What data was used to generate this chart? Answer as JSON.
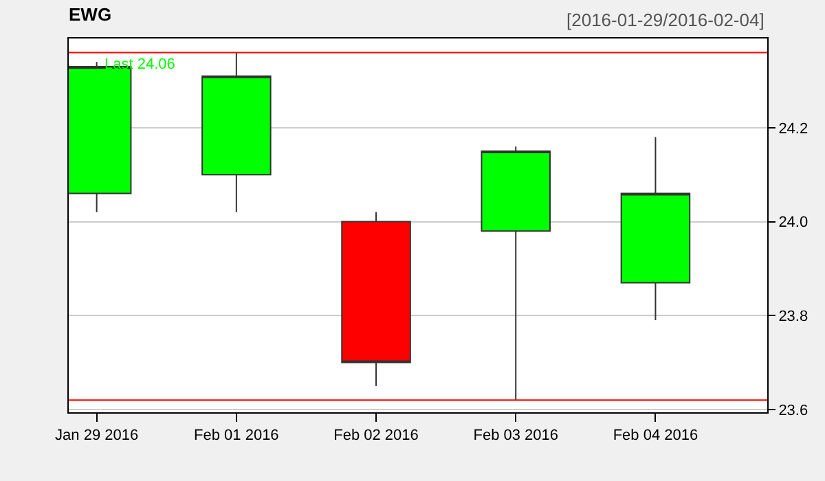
{
  "chart_data": {
    "type": "candlestick",
    "title": "EWG",
    "subtitle": "[2016-01-29/2016-02-04]",
    "categories": [
      "Jan 29 2016",
      "Feb 01 2016",
      "Feb 02 2016",
      "Feb 03 2016",
      "Feb 04 2016"
    ],
    "ohlc": [
      [
        24.06,
        24.34,
        24.02,
        24.33
      ],
      [
        24.1,
        24.36,
        24.02,
        24.31
      ],
      [
        24.0,
        24.02,
        23.65,
        23.7
      ],
      [
        23.98,
        24.16,
        23.62,
        24.15
      ],
      [
        23.87,
        24.18,
        23.79,
        24.06
      ]
    ],
    "colors": [
      "#00ff00",
      "#00ff00",
      "#ff0000",
      "#00ff00",
      "#00ff00"
    ],
    "ylim": [
      23.594,
      24.39
    ],
    "yticks": [
      23.6,
      23.8,
      {
        "value": 24.0,
        "label": "24.0"
      },
      24.2
    ],
    "grid": "y",
    "ref_lines": [
      {
        "axis": "y",
        "value": 24.36,
        "label": "Last 24.06",
        "color": "#ff0000"
      },
      {
        "axis": "y",
        "value": 23.62,
        "color": "#ff0000"
      }
    ]
  }
}
